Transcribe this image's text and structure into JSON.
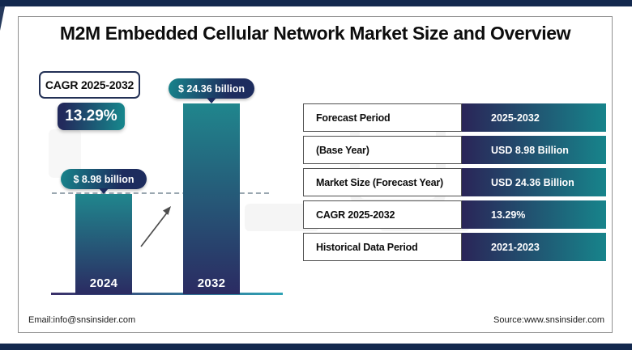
{
  "header": {
    "title": "M2M Embedded Cellular Network Market Size and Overview"
  },
  "cagr_badge": {
    "label": "CAGR 2025-2032",
    "value": "13.29%"
  },
  "chart_data": {
    "type": "bar",
    "categories": [
      "2024",
      "2032"
    ],
    "values": [
      8.98,
      24.36
    ],
    "unit": "USD billion",
    "bar_labels": [
      "$ 8.98 billion",
      "$ 24.36 billion"
    ],
    "title": "",
    "xlabel": "",
    "ylabel": "",
    "ylim": [
      0,
      26
    ],
    "grid": false,
    "annotations": [
      "dashed reference line at 2024 bar top",
      "diagonal growth arrow between bars"
    ]
  },
  "table": {
    "rows": [
      {
        "label": "Forecast Period",
        "value": "2025-2032"
      },
      {
        "label": "(Base Year)",
        "value": "USD 8.98 Billion"
      },
      {
        "label": "Market Size (Forecast Year)",
        "value": "USD 24.36 Billion"
      },
      {
        "label": "CAGR 2025-2032",
        "value": "13.29%"
      },
      {
        "label": "Historical Data Period",
        "value": "2021-2023"
      }
    ]
  },
  "footer": {
    "email": "Email:info@snsinsider.com",
    "source": "Source:www.snsinsider.com"
  },
  "colors": {
    "banner": "#13294E",
    "navy": "#222A5C",
    "teal": "#17848B",
    "bar_top": "#20868D",
    "bar_bottom": "#2B2B62",
    "dotted_line": "#9AA7B0"
  }
}
